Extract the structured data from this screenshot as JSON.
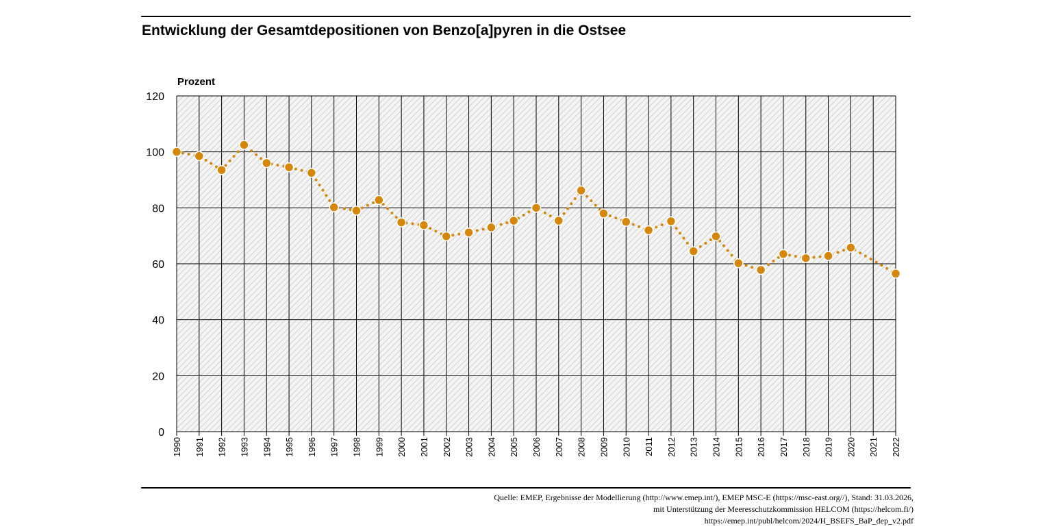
{
  "title": "Entwicklung der Gesamtdepositionen von Benzo[a]pyren in die Ostsee",
  "source_lines": [
    "Quelle: EMEP, Ergebnisse der Modellierung (http://www.emep.int/), EMEP MSC-E (https://msc-east.org//), Stand: 31.03.2026,",
    "mit Unterstützung der Meeresschutzkommission HELCOM (https://helcom.fi/)",
    "https://emep.int/publ/helcom/2024/H_BSEFS_BaP_dep_v2.pdf"
  ],
  "colors": {
    "series": "#d4870a",
    "marker_stroke": "#ffffff",
    "grid": "#000000",
    "hatch": "#c8c8c8",
    "plot_bg": "#f4f4f4"
  },
  "chart_data": {
    "type": "line",
    "title": "Entwicklung der Gesamtdepositionen von Benzo[a]pyren in die Ostsee",
    "ylabel": "Prozent",
    "xlabel": "",
    "ylim": [
      0,
      120
    ],
    "yticks": [
      0,
      20,
      40,
      60,
      80,
      100,
      120
    ],
    "grid": true,
    "legend": "none",
    "x": [
      "1990",
      "1991",
      "1992",
      "1993",
      "1994",
      "1995",
      "1996",
      "1997",
      "1998",
      "1999",
      "2000",
      "2001",
      "2002",
      "2003",
      "2004",
      "2005",
      "2006",
      "2007",
      "2008",
      "2009",
      "2010",
      "2011",
      "2012",
      "2013",
      "2014",
      "2015",
      "2016",
      "2017",
      "2018",
      "2019",
      "2020",
      "2021",
      "2022"
    ],
    "series": [
      {
        "values": [
          100,
          98.5,
          93.5,
          102.5,
          96,
          94.5,
          92.5,
          80.2,
          79,
          82.8,
          74.8,
          73.8,
          69.8,
          71.2,
          73,
          75.4,
          80,
          75.4,
          86.2,
          78,
          75,
          72,
          75.2,
          64.5,
          69.8,
          60.2,
          57.8,
          63.5,
          62,
          62.8,
          65.8,
          null,
          56.5
        ],
        "dotted_segment_to": [
          null,
          null,
          null,
          null,
          null,
          null,
          null,
          null,
          null,
          null,
          null,
          null,
          null,
          null,
          null,
          null,
          null,
          null,
          null,
          null,
          null,
          null,
          null,
          null,
          null,
          null,
          null,
          null,
          null,
          null,
          null,
          61.2,
          null
        ]
      }
    ]
  }
}
